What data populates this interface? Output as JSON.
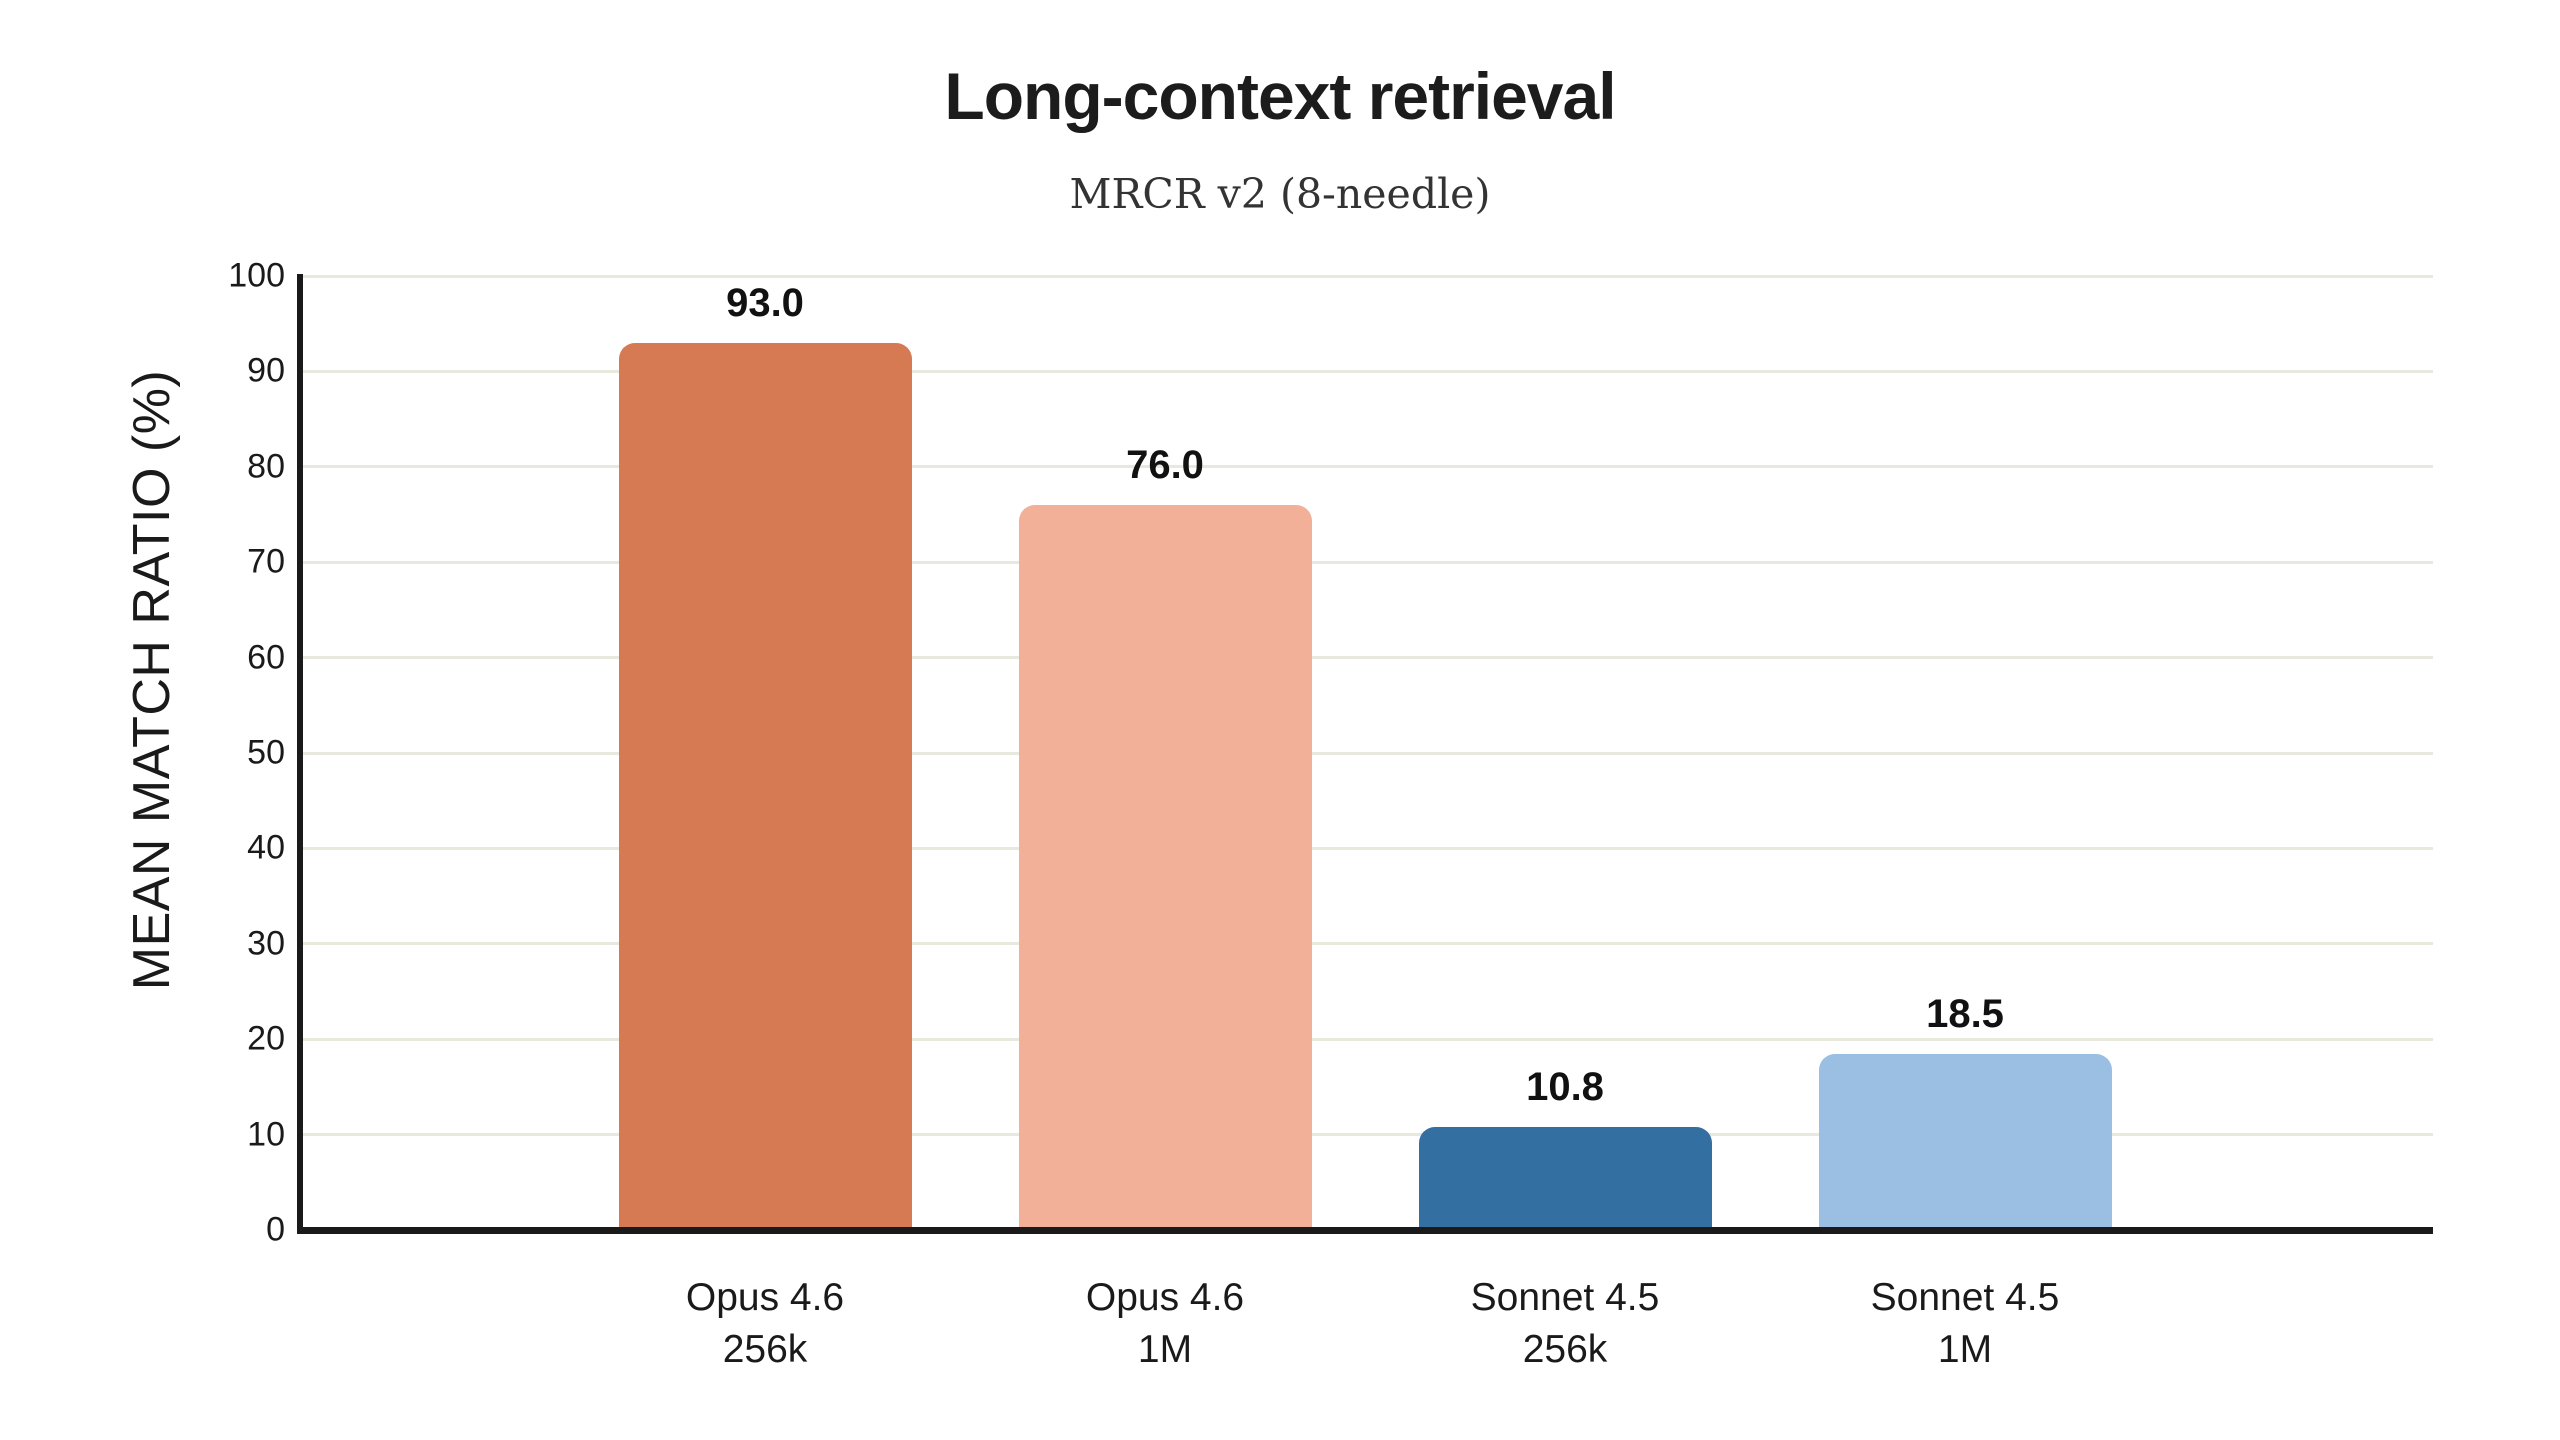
{
  "chart": {
    "title": "Long-context retrieval",
    "subtitle": "MRCR v2 (8-needle)",
    "ylabel": "MEAN MATCH RATIO (%)"
  },
  "chart_data": {
    "type": "bar",
    "title": "Long-context retrieval",
    "subtitle": "MRCR v2 (8-needle)",
    "xlabel": "",
    "ylabel": "MEAN MATCH RATIO (%)",
    "ylim": [
      0,
      100
    ],
    "yticks": [
      0,
      10,
      20,
      30,
      40,
      50,
      60,
      70,
      80,
      90,
      100
    ],
    "grid": "horizontal-only",
    "legend": "none",
    "categories": [
      {
        "model": "Opus 4.6",
        "context": "256k"
      },
      {
        "model": "Opus 4.6",
        "context": "1M"
      },
      {
        "model": "Sonnet 4.5",
        "context": "256k"
      },
      {
        "model": "Sonnet 4.5",
        "context": "1M"
      }
    ],
    "values": [
      93.0,
      76.0,
      10.8,
      18.5
    ],
    "value_labels": [
      "93.0",
      "76.0",
      "10.8",
      "18.5"
    ],
    "bar_colors": [
      "#D67A54",
      "#F3B098",
      "#346FA2",
      "#9ABFE2"
    ],
    "colors": {
      "background": "#FFFFFF",
      "axis": "#1A1A1A",
      "gridline": "#E9E8DC",
      "title_text": "#1C1C1C",
      "subtitle_text": "#333333",
      "value_label_text": "#111111"
    }
  }
}
